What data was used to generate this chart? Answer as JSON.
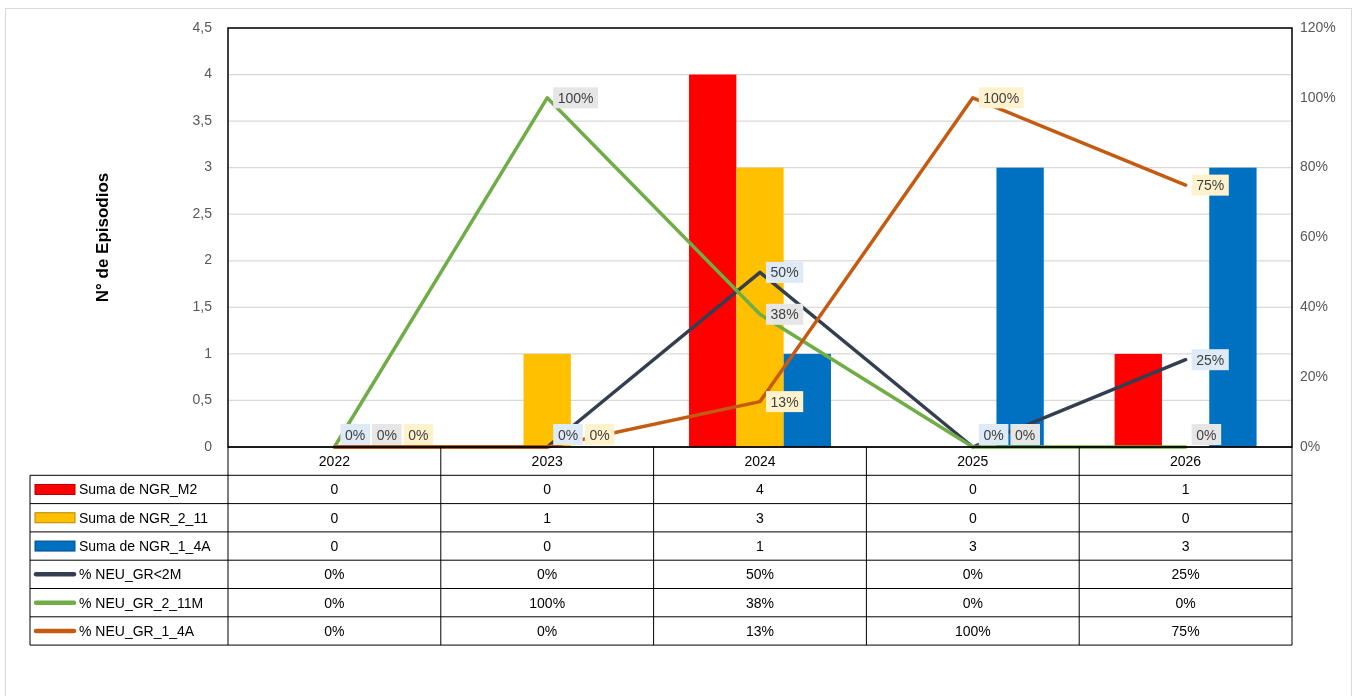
{
  "chart_data": {
    "type": "bar",
    "ylabel": "N° de Episodios",
    "categories": [
      "2022",
      "2023",
      "2024",
      "2025",
      "2026"
    ],
    "series": [
      {
        "name": "Suma de NGR_M2",
        "color": "#ff0000",
        "values": [
          0,
          0,
          4,
          0,
          1
        ]
      },
      {
        "name": "Suma de NGR_2_11",
        "color": "#ffc000",
        "values": [
          0,
          1,
          3,
          0,
          0
        ]
      },
      {
        "name": "Suma de NGR_1_4A",
        "color": "#0070c0",
        "values": [
          0,
          0,
          1,
          3,
          3
        ]
      },
      {
        "name": "% NEU_GR<2M",
        "type": "line",
        "axis": "y2",
        "color": "#333f50",
        "values": [
          0,
          0,
          50,
          0,
          25
        ],
        "value_labels": [
          "0%",
          "0%",
          "50%",
          "0%",
          "25%"
        ]
      },
      {
        "name": "% NEU_GR_2_11M",
        "type": "line",
        "axis": "y2",
        "color": "#70ad47",
        "values": [
          0,
          100,
          38,
          0,
          0
        ],
        "value_labels": [
          "0%",
          "100%",
          "38%",
          "0%",
          "0%"
        ]
      },
      {
        "name": "% NEU_GR_1_4A",
        "type": "line",
        "axis": "y2",
        "color": "#c55a11",
        "values": [
          0,
          0,
          13,
          100,
          75
        ],
        "value_labels": [
          "0%",
          "0%",
          "13%",
          "100%",
          "75%"
        ]
      }
    ],
    "ylim": [
      0,
      4.5
    ],
    "yticks": [
      0,
      {
        "value": 0.5,
        "label": "0,5"
      },
      1,
      {
        "value": 1.5,
        "label": "1,5"
      },
      2,
      {
        "value": 2.5,
        "label": "2,5"
      },
      3,
      {
        "value": 3.5,
        "label": "3,5"
      },
      4,
      {
        "value": 4.5,
        "label": "4,5"
      }
    ],
    "y2lim": [
      0,
      120
    ],
    "y2ticks": [
      {
        "value": 0,
        "label": "0%"
      },
      {
        "value": 20,
        "label": "20%"
      },
      {
        "value": 40,
        "label": "40%"
      },
      {
        "value": 60,
        "label": "60%"
      },
      {
        "value": 80,
        "label": "80%"
      },
      {
        "value": 100,
        "label": "100%"
      },
      {
        "value": 120,
        "label": "120%"
      }
    ],
    "grid": "y",
    "legend": "bottom",
    "data_labels": true
  }
}
